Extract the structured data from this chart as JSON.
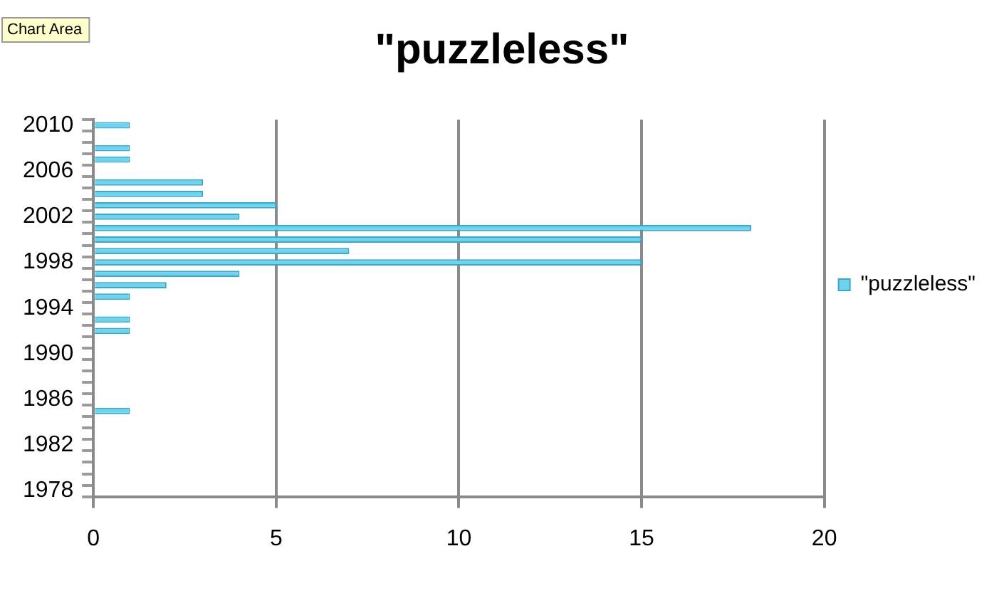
{
  "chart_data": {
    "type": "bar",
    "orientation": "horizontal",
    "title": "\"puzzleless\"",
    "categories": [
      "2010",
      null,
      null,
      null,
      "2006",
      null,
      null,
      null,
      "2002",
      null,
      null,
      null,
      "1998",
      null,
      null,
      null,
      "1994",
      null,
      null,
      null,
      "1990",
      null,
      null,
      null,
      "1986",
      null,
      null,
      null,
      "1982",
      null,
      null,
      null,
      "1978"
    ],
    "series": [
      {
        "name": "\"puzzleless\"",
        "color": "#6fd3ee",
        "values": [
          1,
          null,
          1,
          1,
          null,
          3,
          3,
          5,
          4,
          18,
          15,
          7,
          15,
          4,
          2,
          1,
          null,
          1,
          1,
          null,
          null,
          null,
          null,
          null,
          null,
          1,
          null,
          null,
          null,
          null,
          null,
          null,
          null
        ]
      }
    ],
    "xlim": [
      0,
      20
    ],
    "xticks": [
      0,
      5,
      10,
      15,
      20
    ],
    "grid": "x",
    "legend": "right",
    "annotations": [
      "Chart Area"
    ]
  }
}
